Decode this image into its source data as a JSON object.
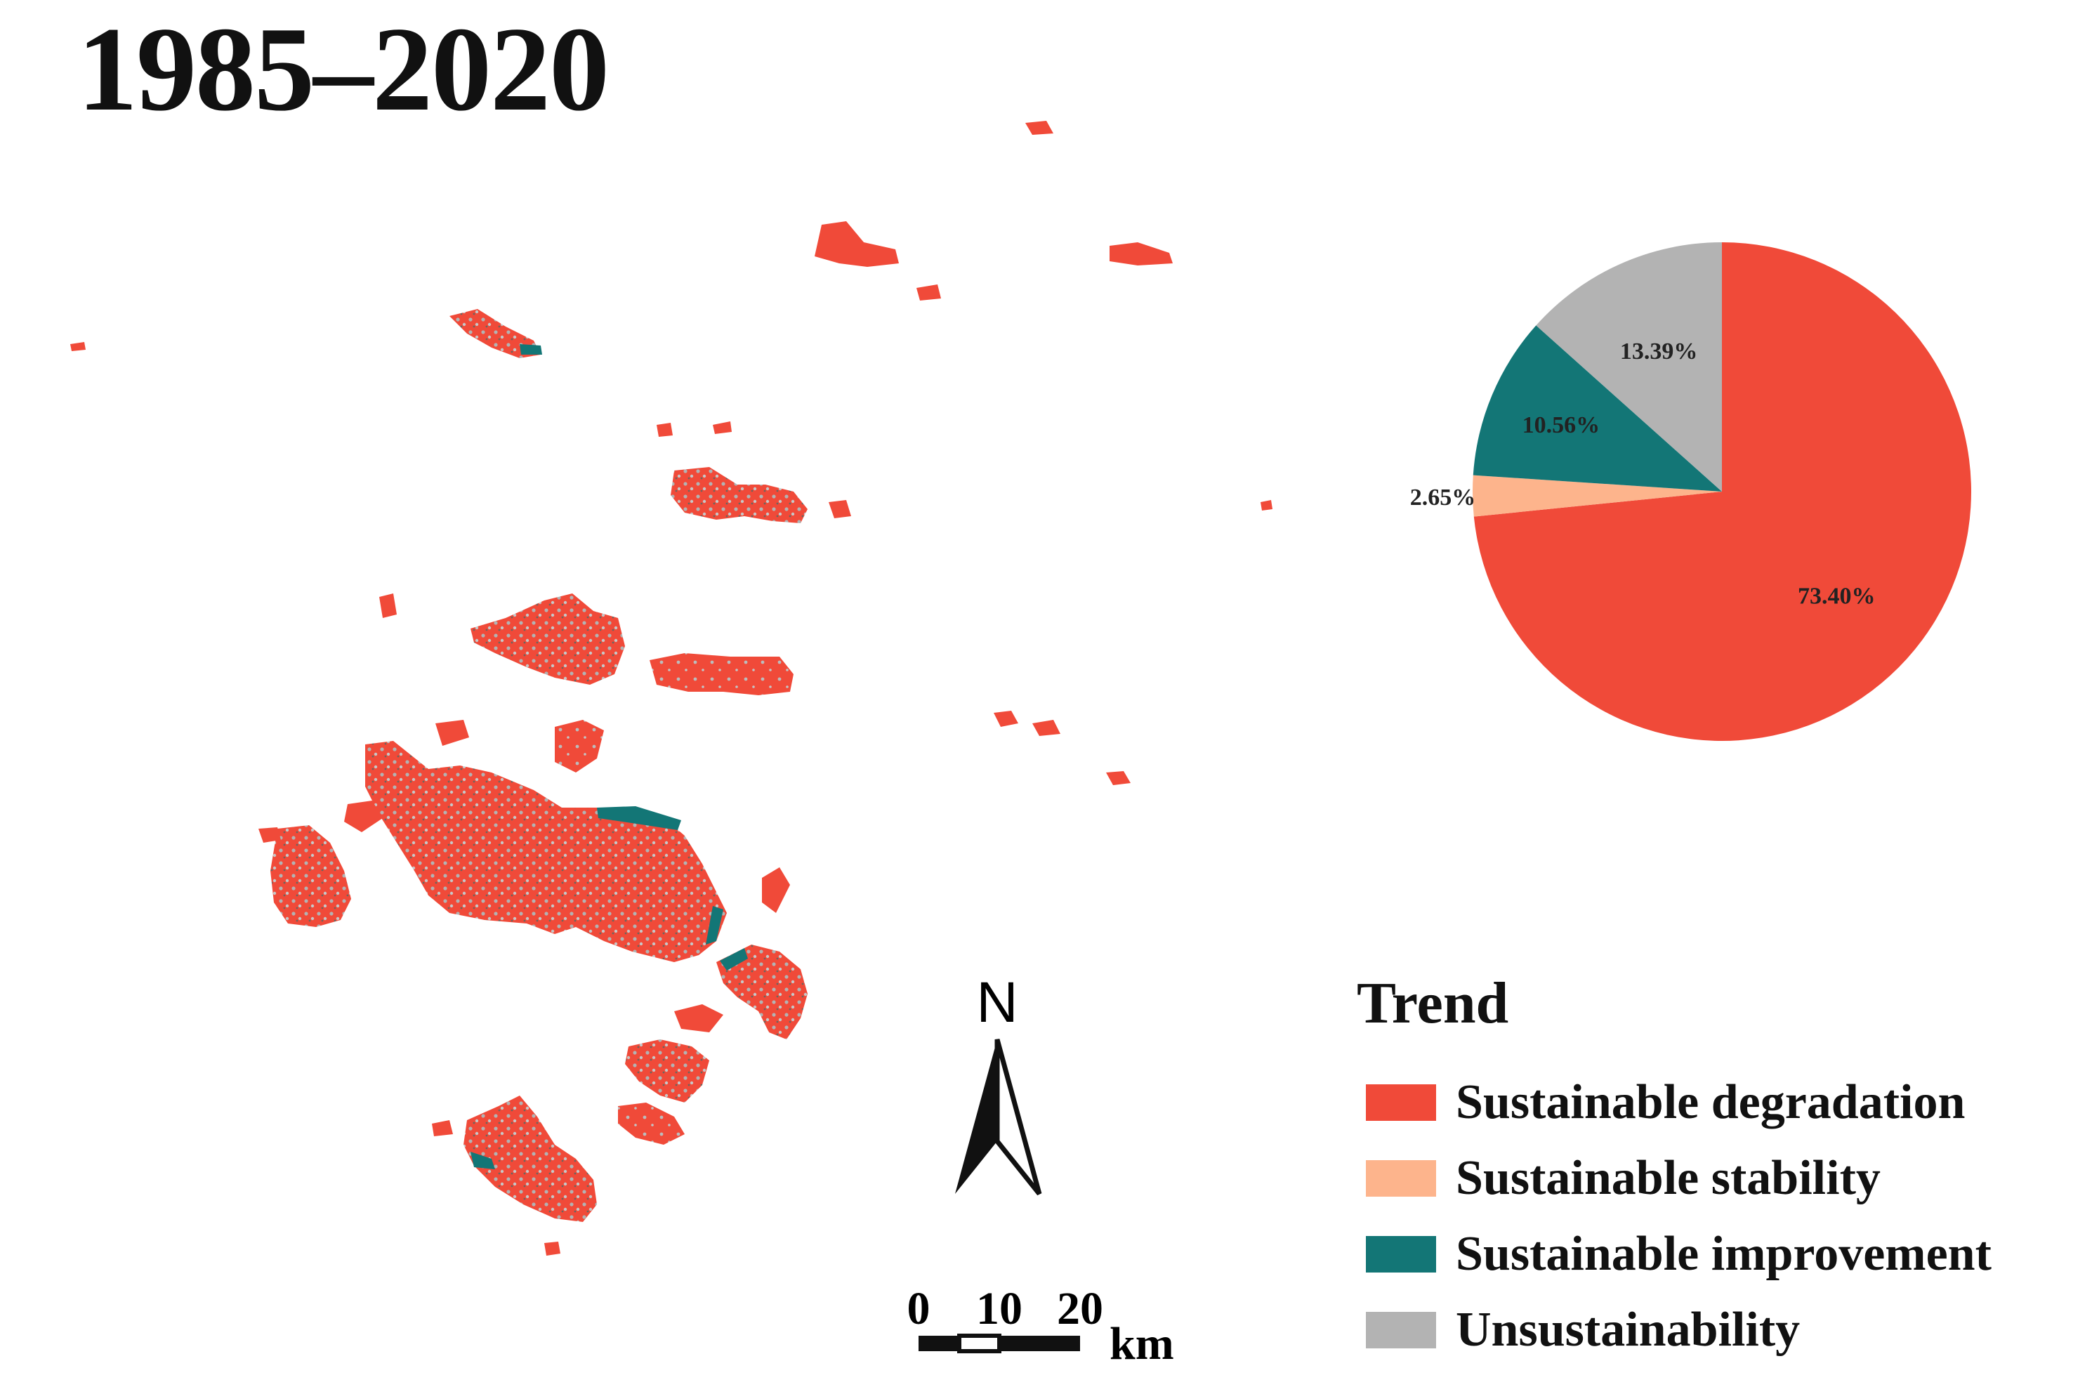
{
  "title": "1985–2020",
  "legend": {
    "title": "Trend",
    "items": [
      {
        "label": "Sustainable degradation",
        "color": "#f04a39"
      },
      {
        "label": "Sustainable stability",
        "color": "#fdb48c"
      },
      {
        "label": "Sustainable improvement",
        "color": "#137676"
      },
      {
        "label": "Unsustainability",
        "color": "#b3b3b3"
      }
    ]
  },
  "north_arrow": {
    "label": "N"
  },
  "scale_bar": {
    "ticks": [
      "0",
      "10",
      "20"
    ],
    "unit": "km"
  },
  "chart_data": {
    "type": "pie",
    "slices": [
      {
        "label": "73.40%",
        "value": 73.4,
        "color": "#f04a39"
      },
      {
        "label": "2.65%",
        "value": 2.65,
        "color": "#fdb48c"
      },
      {
        "label": "10.56%",
        "value": 10.56,
        "color": "#137676"
      },
      {
        "label": "13.39%",
        "value": 13.39,
        "color": "#b3b3b3"
      }
    ]
  }
}
